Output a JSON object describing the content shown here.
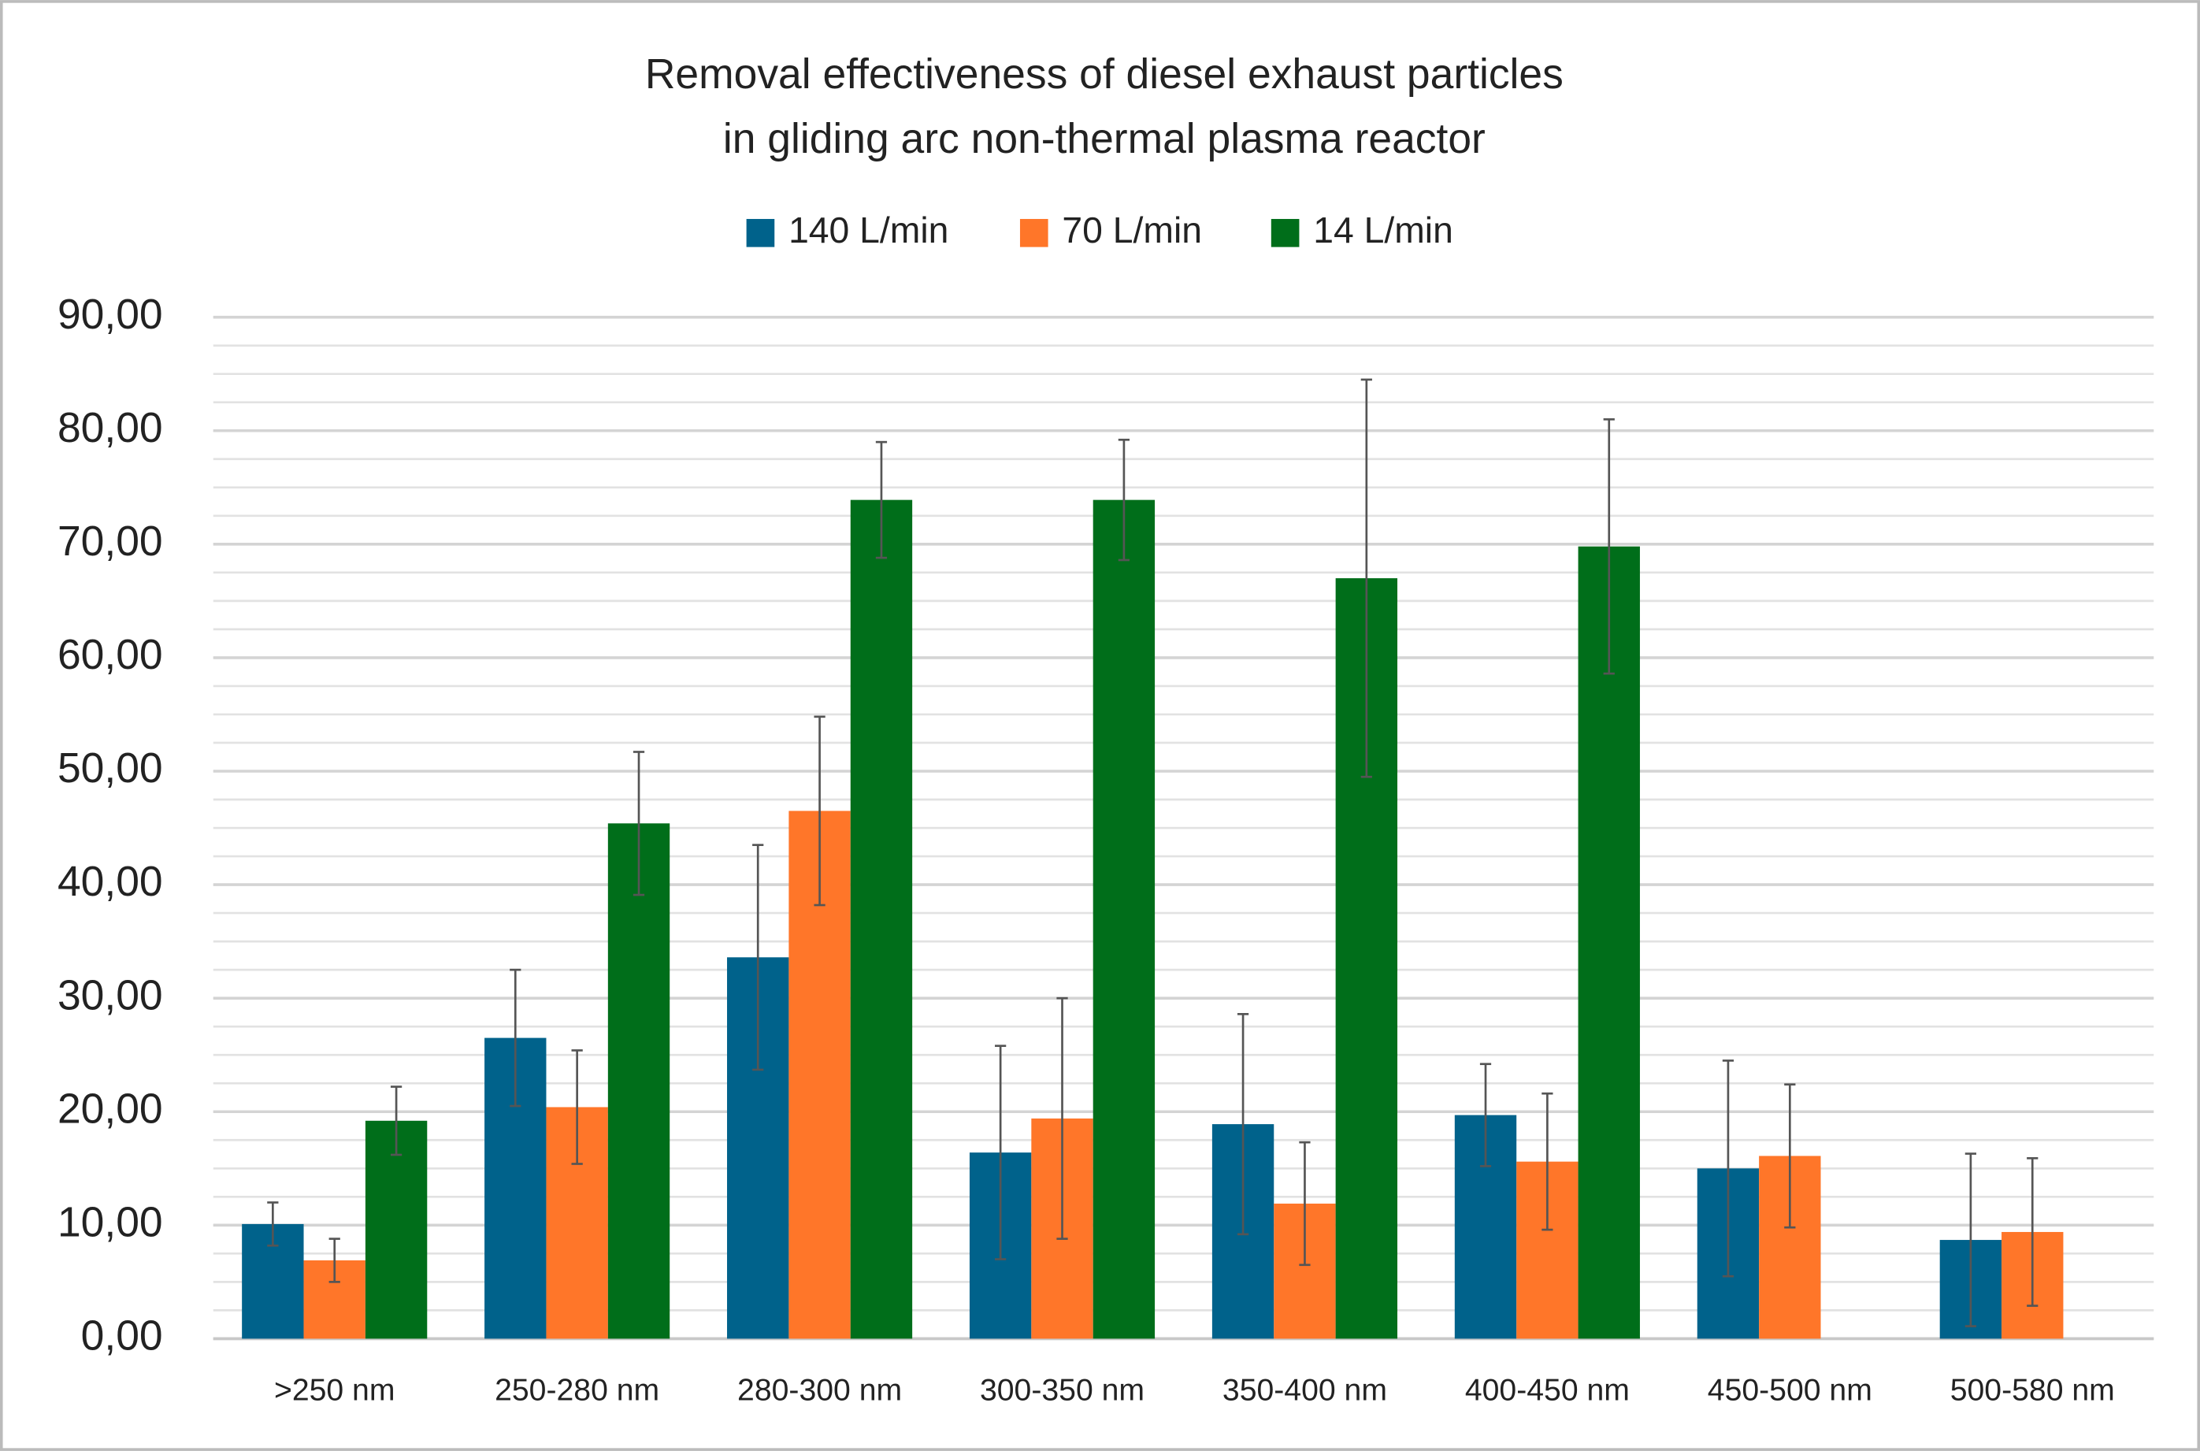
{
  "chart_data": {
    "type": "bar",
    "title": [
      "Removal effectiveness of diesel exhaust particles",
      "in gliding arc non-thermal plasma reactor"
    ],
    "categories": [
      ">250 nm",
      "250-280 nm",
      "280-300 nm",
      "300-350 nm",
      "350-400 nm",
      "400-450 nm",
      "450-500 nm",
      "500-580 nm"
    ],
    "series": [
      {
        "name": "140 L/min",
        "color": "#00628b",
        "values": [
          10.1,
          26.5,
          33.6,
          16.4,
          18.9,
          19.7,
          15.0,
          8.7
        ],
        "errors": [
          1.9,
          6.0,
          9.9,
          9.4,
          9.7,
          4.5,
          9.5,
          7.6
        ]
      },
      {
        "name": "70 L/min",
        "color": "#ff7629",
        "values": [
          6.9,
          20.4,
          46.5,
          19.4,
          11.9,
          15.6,
          16.1,
          9.4
        ],
        "errors": [
          1.9,
          5.0,
          8.3,
          10.6,
          5.4,
          6.0,
          6.3,
          6.5
        ]
      },
      {
        "name": "14 L/min",
        "color": "#006e1a",
        "values": [
          19.2,
          45.4,
          73.9,
          73.9,
          67.0,
          69.8,
          null,
          null
        ],
        "errors": [
          3.0,
          6.3,
          5.1,
          5.3,
          17.5,
          11.2,
          null,
          null
        ]
      }
    ],
    "ylim": [
      0,
      90
    ],
    "yticks": [
      {
        "value": 0,
        "label": "0,00"
      },
      {
        "value": 10,
        "label": "10,00"
      },
      {
        "value": 20,
        "label": "20,00"
      },
      {
        "value": 30,
        "label": "30,00"
      },
      {
        "value": 40,
        "label": "40,00"
      },
      {
        "value": 50,
        "label": "50,00"
      },
      {
        "value": 60,
        "label": "60,00"
      },
      {
        "value": 70,
        "label": "70,00"
      },
      {
        "value": 80,
        "label": "80,00"
      },
      {
        "value": 90,
        "label": "90,00"
      }
    ],
    "minor_grid_step": 2.5,
    "grid": true,
    "legend": "top"
  }
}
